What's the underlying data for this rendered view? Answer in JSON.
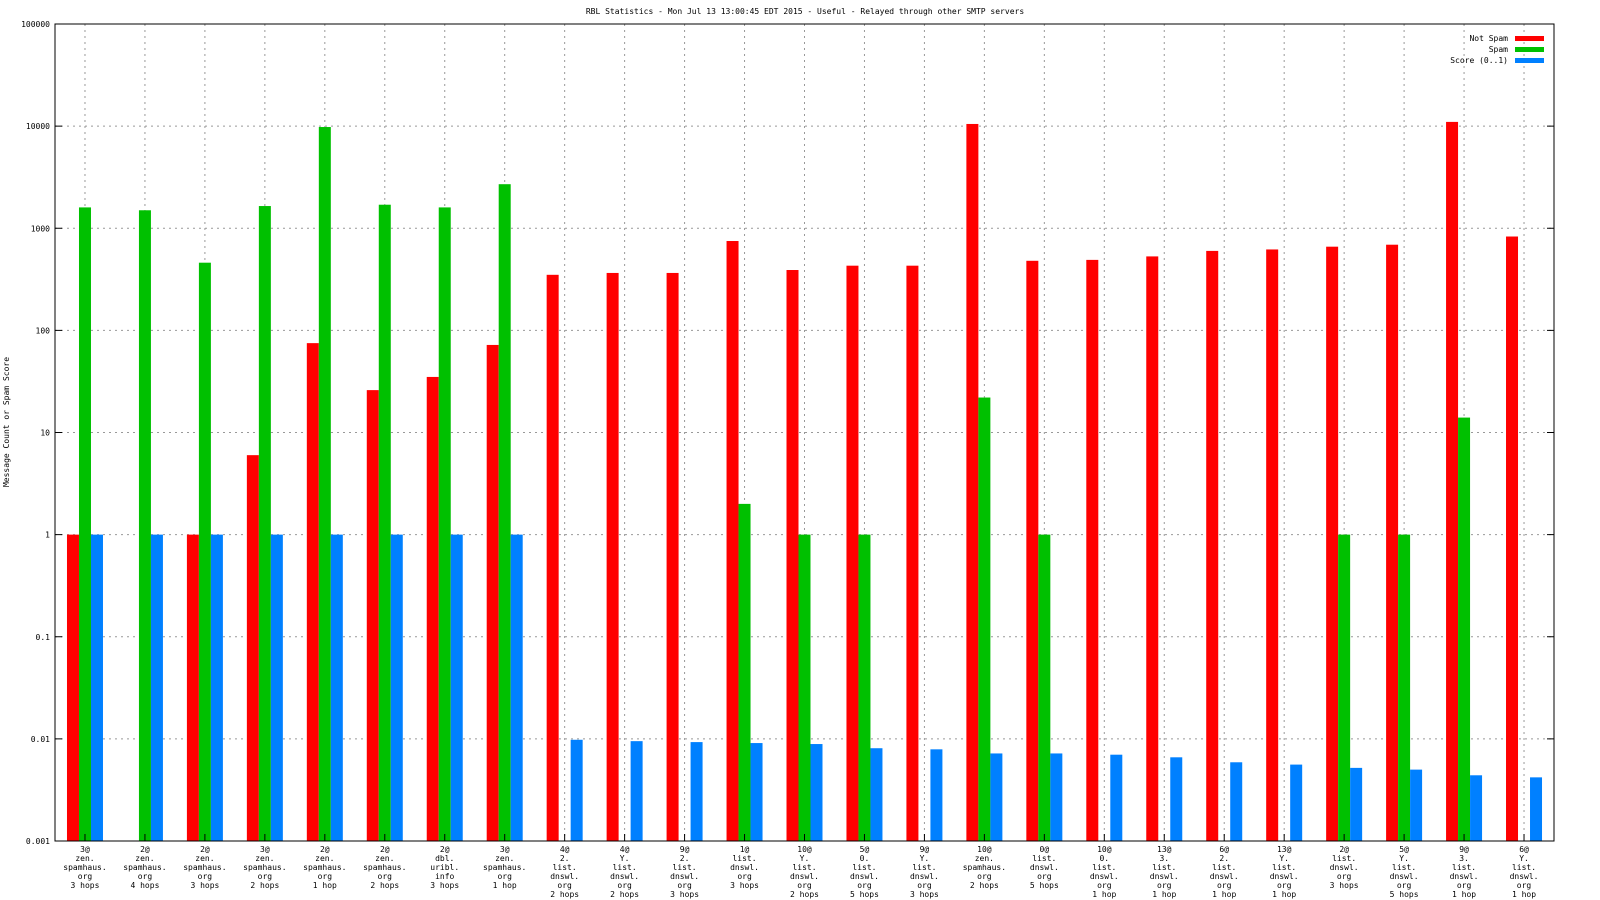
{
  "chart_data": {
    "type": "bar",
    "title": "RBL Statistics - Mon Jul 13 13:00:45 EDT 2015 - Useful - Relayed through other SMTP servers",
    "xlabel": "",
    "ylabel": "Message Count or Spam Score",
    "yscale": "log",
    "ylim": [
      0.001,
      100000
    ],
    "yticks": [
      {
        "value": 0.001,
        "label": "0.001"
      },
      {
        "value": 0.01,
        "label": "0.01"
      },
      {
        "value": 0.1,
        "label": "0.1"
      },
      {
        "value": 1,
        "label": "1"
      },
      {
        "value": 10,
        "label": "10"
      },
      {
        "value": 100,
        "label": "100"
      },
      {
        "value": 1000,
        "label": "1000"
      },
      {
        "value": 10000,
        "label": "10000"
      },
      {
        "value": 100000,
        "label": "100000"
      }
    ],
    "grid": true,
    "legend_position": "top-right",
    "categories": [
      [
        "3@",
        "zen.",
        "spamhaus.",
        "org",
        "3 hops"
      ],
      [
        "2@",
        "zen.",
        "spamhaus.",
        "org",
        "4 hops"
      ],
      [
        "2@",
        "zen.",
        "spamhaus.",
        "org",
        "3 hops"
      ],
      [
        "3@",
        "zen.",
        "spamhaus.",
        "org",
        "2 hops"
      ],
      [
        "2@",
        "zen.",
        "spamhaus.",
        "org",
        "1 hop"
      ],
      [
        "2@",
        "zen.",
        "spamhaus.",
        "org",
        "2 hops"
      ],
      [
        "2@",
        "dbl.",
        "uribl.",
        "info",
        "3 hops"
      ],
      [
        "3@",
        "zen.",
        "spamhaus.",
        "org",
        "1 hop"
      ],
      [
        "4@",
        "2.",
        "list.",
        "dnswl.",
        "org",
        "2 hops"
      ],
      [
        "4@",
        "Y.",
        "list.",
        "dnswl.",
        "org",
        "2 hops"
      ],
      [
        "9@",
        "2.",
        "list.",
        "dnswl.",
        "org",
        "3 hops"
      ],
      [
        "1@",
        "list.",
        "dnswl.",
        "org",
        "3 hops"
      ],
      [
        "10@",
        "Y.",
        "list.",
        "dnswl.",
        "org",
        "2 hops"
      ],
      [
        "5@",
        "0.",
        "list.",
        "dnswl.",
        "org",
        "5 hops"
      ],
      [
        "9@",
        "Y.",
        "list.",
        "dnswl.",
        "org",
        "3 hops"
      ],
      [
        "10@",
        "zen.",
        "spamhaus.",
        "org",
        "2 hops"
      ],
      [
        "0@",
        "list.",
        "dnswl.",
        "org",
        "5 hops"
      ],
      [
        "10@",
        "0.",
        "list.",
        "dnswl.",
        "org",
        "1 hop"
      ],
      [
        "13@",
        "3.",
        "list.",
        "dnswl.",
        "org",
        "1 hop"
      ],
      [
        "6@",
        "2.",
        "list.",
        "dnswl.",
        "org",
        "1 hop"
      ],
      [
        "13@",
        "Y.",
        "list.",
        "dnswl.",
        "org",
        "1 hop"
      ],
      [
        "2@",
        "list.",
        "dnswl.",
        "org",
        "3 hops"
      ],
      [
        "5@",
        "Y.",
        "list.",
        "dnswl.",
        "org",
        "5 hops"
      ],
      [
        "9@",
        "3.",
        "list.",
        "dnswl.",
        "org",
        "1 hop"
      ],
      [
        "6@",
        "Y.",
        "list.",
        "dnswl.",
        "org",
        "1 hop"
      ]
    ],
    "series": [
      {
        "name": "Not Spam",
        "color": "#ff0000",
        "values": [
          1,
          null,
          1,
          6,
          75,
          26,
          35,
          72,
          350,
          365,
          365,
          750,
          390,
          430,
          430,
          10500,
          480,
          490,
          530,
          600,
          620,
          660,
          690,
          11000,
          830
        ]
      },
      {
        "name": "Spam",
        "color": "#00c000",
        "values": [
          1600,
          1500,
          460,
          1650,
          9800,
          1700,
          1600,
          2700,
          null,
          null,
          null,
          2,
          1,
          1,
          null,
          22,
          1,
          null,
          null,
          null,
          null,
          1,
          1,
          14,
          null
        ]
      },
      {
        "name": "Score (0..1)",
        "color": "#0080ff",
        "values": [
          1,
          1,
          1,
          1,
          1,
          1,
          1,
          1,
          0.0098,
          0.0095,
          0.0093,
          0.0091,
          0.0089,
          0.0081,
          0.0079,
          0.0072,
          0.0072,
          0.007,
          0.0066,
          0.0059,
          0.0056,
          0.0052,
          0.005,
          0.0044,
          0.0042
        ]
      }
    ]
  }
}
